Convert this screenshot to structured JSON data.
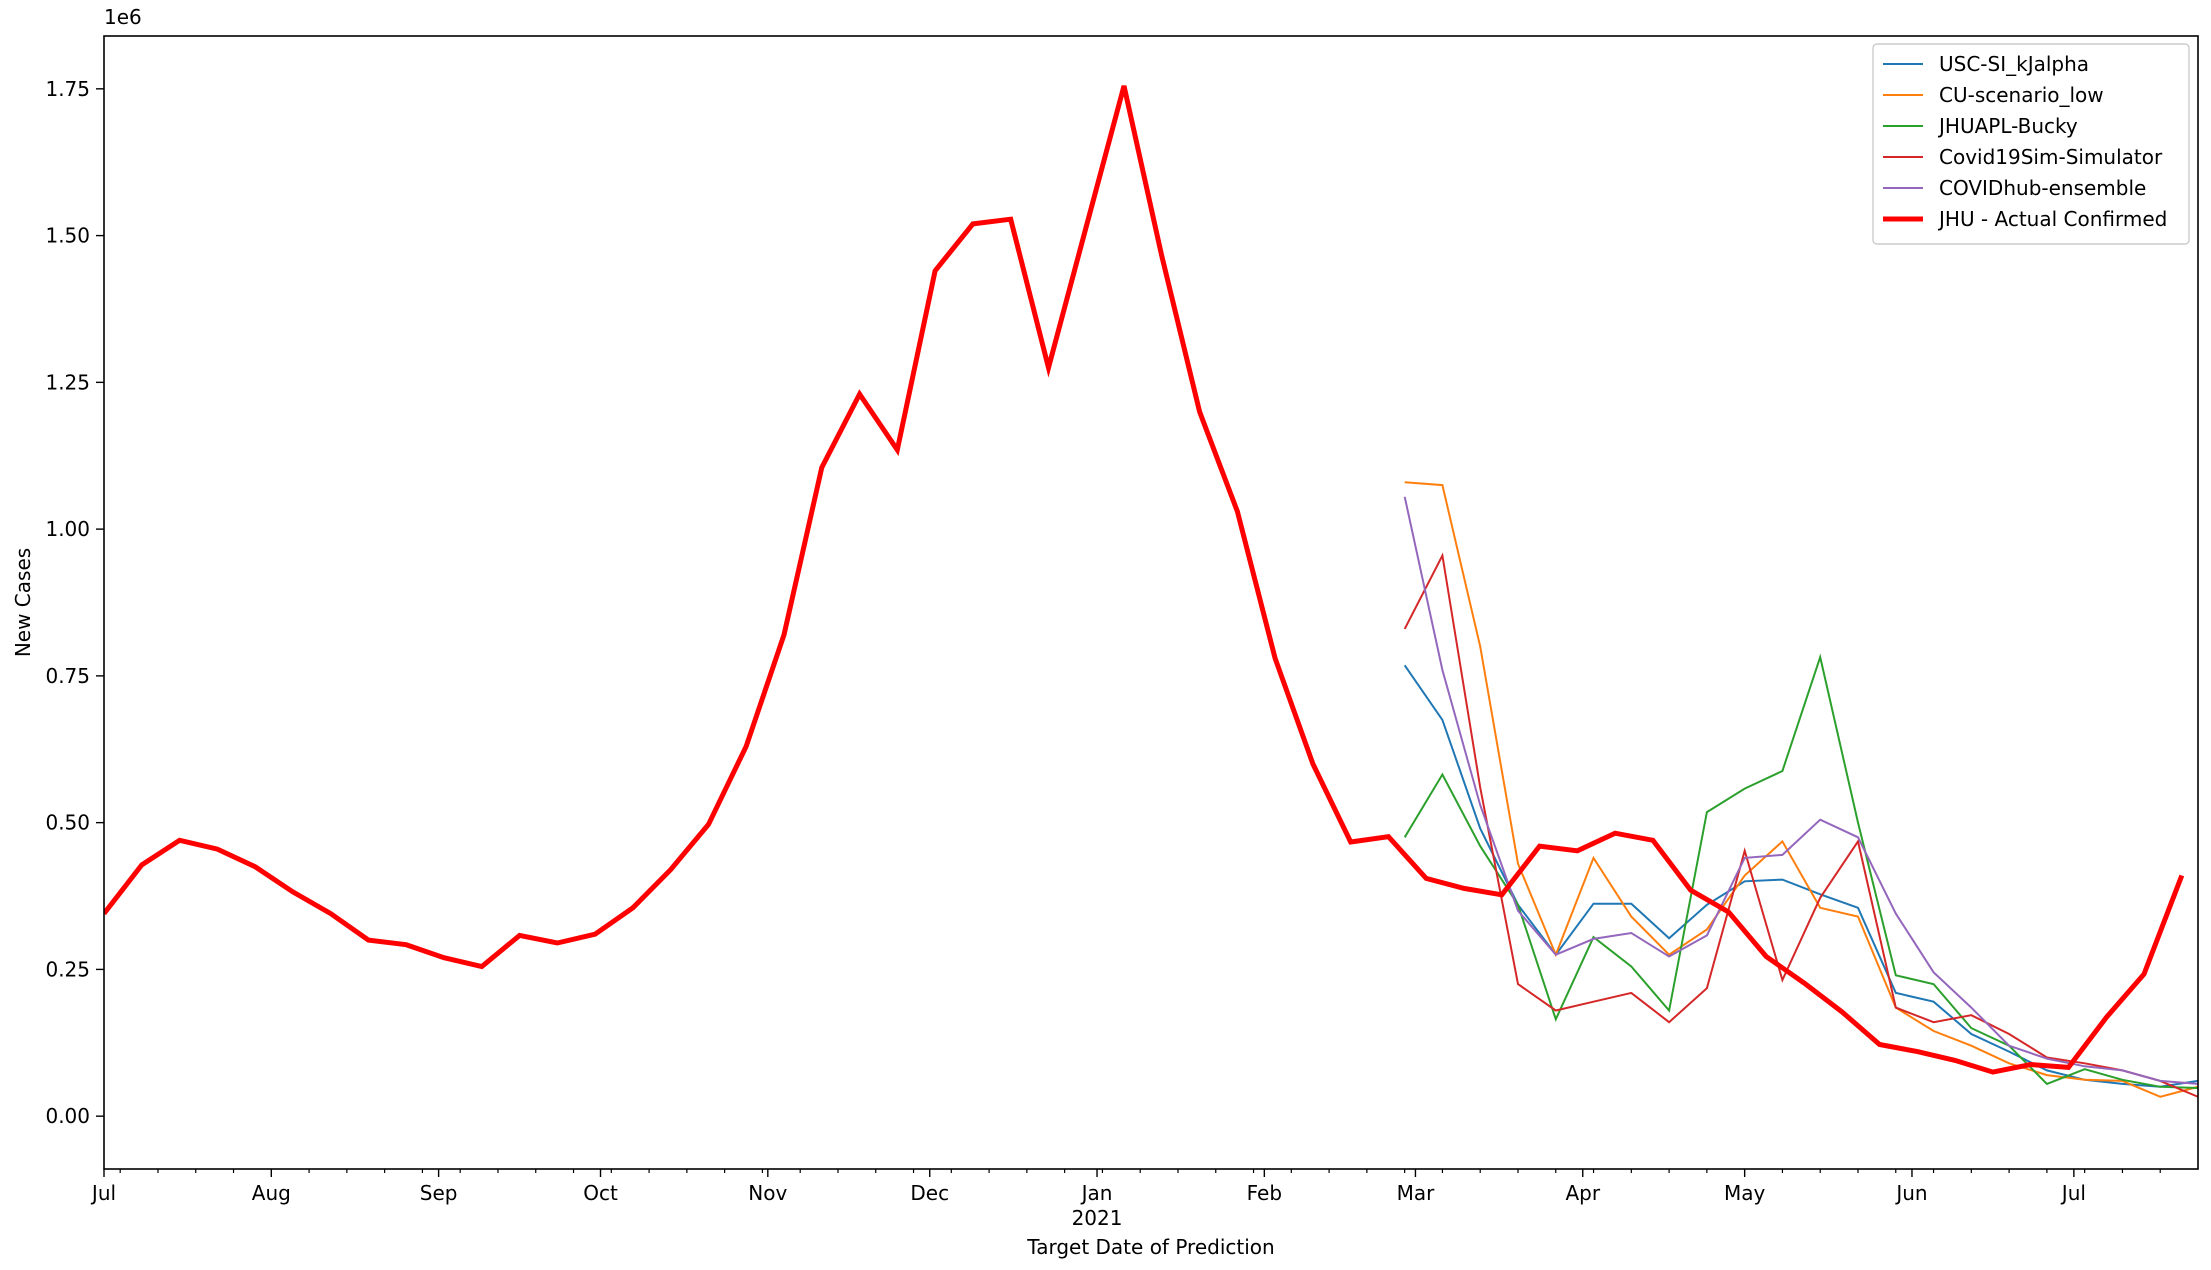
{
  "chart_data": {
    "type": "line",
    "title": "",
    "xlabel": "Target Date of Prediction",
    "ylabel": "New Cases",
    "y_scale_label": "1e6",
    "ylim": [
      -0.09,
      1.84
    ],
    "xlim": [
      "2020-07-01",
      "2021-07-24"
    ],
    "y_ticks": [
      {
        "value": 0.0,
        "label": "0.00"
      },
      {
        "value": 0.25,
        "label": "0.25"
      },
      {
        "value": 0.5,
        "label": "0.50"
      },
      {
        "value": 0.75,
        "label": "0.75"
      },
      {
        "value": 1.0,
        "label": "1.00"
      },
      {
        "value": 1.25,
        "label": "1.25"
      },
      {
        "value": 1.5,
        "label": "1.50"
      },
      {
        "value": 1.75,
        "label": "1.75"
      }
    ],
    "x_major_ticks": [
      {
        "date": "2020-07-01",
        "label": "Jul"
      },
      {
        "date": "2020-08-01",
        "label": "Aug"
      },
      {
        "date": "2020-09-01",
        "label": "Sep"
      },
      {
        "date": "2020-10-01",
        "label": "Oct"
      },
      {
        "date": "2020-11-01",
        "label": "Nov"
      },
      {
        "date": "2020-12-01",
        "label": "Dec"
      },
      {
        "date": "2021-01-01",
        "label": "Jan",
        "sublabel": "2021"
      },
      {
        "date": "2021-02-01",
        "label": "Feb"
      },
      {
        "date": "2021-03-01",
        "label": "Mar"
      },
      {
        "date": "2021-04-01",
        "label": "Apr"
      },
      {
        "date": "2021-05-01",
        "label": "May"
      },
      {
        "date": "2021-06-01",
        "label": "Jun"
      },
      {
        "date": "2021-07-01",
        "label": "Jul"
      }
    ],
    "x_minor_ticks": [
      "2020-07-04",
      "2020-07-11",
      "2020-07-18",
      "2020-07-25",
      "2020-08-08",
      "2020-08-15",
      "2020-08-22",
      "2020-08-29",
      "2020-09-05",
      "2020-09-12",
      "2020-09-19",
      "2020-09-26",
      "2020-10-03",
      "2020-10-10",
      "2020-10-17",
      "2020-10-24",
      "2020-10-31",
      "2020-11-07",
      "2020-11-14",
      "2020-11-21",
      "2020-11-28",
      "2020-12-05",
      "2020-12-12",
      "2020-12-19",
      "2020-12-26",
      "2021-01-02",
      "2021-01-09",
      "2021-01-16",
      "2021-01-23",
      "2021-01-30",
      "2021-02-06",
      "2021-02-13",
      "2021-02-20",
      "2021-02-27",
      "2021-03-06",
      "2021-03-13",
      "2021-03-20",
      "2021-03-27",
      "2021-04-03",
      "2021-04-10",
      "2021-04-17",
      "2021-04-24",
      "2021-05-08",
      "2021-05-15",
      "2021-05-22",
      "2021-05-29",
      "2021-06-05",
      "2021-06-12",
      "2021-06-19",
      "2021-06-26",
      "2021-07-03",
      "2021-07-10",
      "2021-07-17"
    ],
    "legend_position": "top-right",
    "grid": false,
    "series": [
      {
        "name": "USC-SI_kJalpha",
        "color": "#1f77b4",
        "line_width": 2,
        "points": [
          [
            "2021-02-27",
            0.768
          ],
          [
            "2021-03-06",
            0.675
          ],
          [
            "2021-03-13",
            0.49
          ],
          [
            "2021-03-20",
            0.36
          ],
          [
            "2021-03-27",
            0.275
          ],
          [
            "2021-04-03",
            0.362
          ],
          [
            "2021-04-10",
            0.362
          ],
          [
            "2021-04-17",
            0.303
          ],
          [
            "2021-04-24",
            0.36
          ],
          [
            "2021-05-01",
            0.4
          ],
          [
            "2021-05-08",
            0.403
          ],
          [
            "2021-05-15",
            0.378
          ],
          [
            "2021-05-22",
            0.355
          ],
          [
            "2021-05-29",
            0.21
          ],
          [
            "2021-06-05",
            0.195
          ],
          [
            "2021-06-12",
            0.14
          ],
          [
            "2021-06-19",
            0.11
          ],
          [
            "2021-06-26",
            0.078
          ],
          [
            "2021-07-03",
            0.062
          ],
          [
            "2021-07-10",
            0.055
          ],
          [
            "2021-07-17",
            0.05
          ],
          [
            "2021-07-24",
            0.06
          ],
          [
            "2021-07-31",
            0.073
          ]
        ]
      },
      {
        "name": "CU-scenario_low",
        "color": "#ff7f0e",
        "line_width": 2,
        "points": [
          [
            "2021-02-27",
            1.08
          ],
          [
            "2021-03-06",
            1.075
          ],
          [
            "2021-03-13",
            0.8
          ],
          [
            "2021-03-20",
            0.43
          ],
          [
            "2021-03-27",
            0.275
          ],
          [
            "2021-04-03",
            0.44
          ],
          [
            "2021-04-10",
            0.34
          ],
          [
            "2021-04-17",
            0.275
          ],
          [
            "2021-04-24",
            0.318
          ],
          [
            "2021-05-01",
            0.41
          ],
          [
            "2021-05-08",
            0.468
          ],
          [
            "2021-05-15",
            0.355
          ],
          [
            "2021-05-22",
            0.34
          ],
          [
            "2021-05-29",
            0.185
          ],
          [
            "2021-06-05",
            0.145
          ],
          [
            "2021-06-12",
            0.12
          ],
          [
            "2021-06-19",
            0.09
          ],
          [
            "2021-06-26",
            0.07
          ],
          [
            "2021-07-03",
            0.062
          ],
          [
            "2021-07-10",
            0.06
          ],
          [
            "2021-07-17",
            0.033
          ],
          [
            "2021-07-24",
            0.05
          ],
          [
            "2021-07-31",
            0.05
          ]
        ]
      },
      {
        "name": "JHUAPL-Bucky",
        "color": "#2ca02c",
        "line_width": 2,
        "points": [
          [
            "2021-02-27",
            0.475
          ],
          [
            "2021-03-06",
            0.582
          ],
          [
            "2021-03-13",
            0.46
          ],
          [
            "2021-03-20",
            0.36
          ],
          [
            "2021-03-27",
            0.165
          ],
          [
            "2021-04-03",
            0.305
          ],
          [
            "2021-04-10",
            0.255
          ],
          [
            "2021-04-17",
            0.18
          ],
          [
            "2021-04-24",
            0.518
          ],
          [
            "2021-05-01",
            0.558
          ],
          [
            "2021-05-08",
            0.588
          ],
          [
            "2021-05-15",
            0.782
          ],
          [
            "2021-05-22",
            0.5
          ],
          [
            "2021-05-29",
            0.24
          ],
          [
            "2021-06-05",
            0.225
          ],
          [
            "2021-06-12",
            0.15
          ],
          [
            "2021-06-19",
            0.12
          ],
          [
            "2021-06-26",
            0.055
          ],
          [
            "2021-07-03",
            0.08
          ],
          [
            "2021-07-10",
            0.062
          ],
          [
            "2021-07-17",
            0.05
          ],
          [
            "2021-07-24",
            0.048
          ],
          [
            "2021-07-31",
            0.045
          ]
        ]
      },
      {
        "name": "Covid19Sim-Simulator",
        "color": "#d62728",
        "line_width": 2,
        "points": [
          [
            "2021-02-27",
            0.83
          ],
          [
            "2021-03-06",
            0.955
          ],
          [
            "2021-03-13",
            0.56
          ],
          [
            "2021-03-20",
            0.225
          ],
          [
            "2021-03-27",
            0.18
          ],
          [
            "2021-04-03",
            0.195
          ],
          [
            "2021-04-10",
            0.21
          ],
          [
            "2021-04-17",
            0.16
          ],
          [
            "2021-04-24",
            0.218
          ],
          [
            "2021-05-01",
            0.452
          ],
          [
            "2021-05-08",
            0.232
          ],
          [
            "2021-05-15",
            0.372
          ],
          [
            "2021-05-22",
            0.468
          ],
          [
            "2021-05-29",
            0.185
          ],
          [
            "2021-06-05",
            0.16
          ],
          [
            "2021-06-12",
            0.172
          ],
          [
            "2021-06-19",
            0.14
          ],
          [
            "2021-06-26",
            0.1
          ],
          [
            "2021-07-03",
            0.09
          ],
          [
            "2021-07-10",
            0.078
          ],
          [
            "2021-07-17",
            0.06
          ],
          [
            "2021-07-24",
            0.033
          ],
          [
            "2021-07-31",
            0.028
          ]
        ]
      },
      {
        "name": "COVIDhub-ensemble",
        "color": "#9467bd",
        "line_width": 2,
        "points": [
          [
            "2021-02-27",
            1.055
          ],
          [
            "2021-03-06",
            0.76
          ],
          [
            "2021-03-13",
            0.53
          ],
          [
            "2021-03-20",
            0.35
          ],
          [
            "2021-03-27",
            0.275
          ],
          [
            "2021-04-03",
            0.302
          ],
          [
            "2021-04-10",
            0.312
          ],
          [
            "2021-04-17",
            0.272
          ],
          [
            "2021-04-24",
            0.308
          ],
          [
            "2021-05-01",
            0.44
          ],
          [
            "2021-05-08",
            0.445
          ],
          [
            "2021-05-15",
            0.505
          ],
          [
            "2021-05-22",
            0.475
          ],
          [
            "2021-05-29",
            0.345
          ],
          [
            "2021-06-05",
            0.245
          ],
          [
            "2021-06-12",
            0.185
          ],
          [
            "2021-06-19",
            0.12
          ],
          [
            "2021-06-26",
            0.098
          ],
          [
            "2021-07-03",
            0.085
          ],
          [
            "2021-07-10",
            0.078
          ],
          [
            "2021-07-17",
            0.06
          ],
          [
            "2021-07-24",
            0.055
          ],
          [
            "2021-07-31",
            0.058
          ]
        ]
      },
      {
        "name": "JHU - Actual Confirmed",
        "color": "#ff0000",
        "line_width": 5,
        "points": [
          [
            "2020-07-01",
            0.345
          ],
          [
            "2020-07-08",
            0.428
          ],
          [
            "2020-07-15",
            0.47
          ],
          [
            "2020-07-22",
            0.455
          ],
          [
            "2020-07-29",
            0.425
          ],
          [
            "2020-08-05",
            0.382
          ],
          [
            "2020-08-12",
            0.345
          ],
          [
            "2020-08-19",
            0.3
          ],
          [
            "2020-08-26",
            0.292
          ],
          [
            "2020-09-02",
            0.27
          ],
          [
            "2020-09-09",
            0.255
          ],
          [
            "2020-09-16",
            0.308
          ],
          [
            "2020-09-23",
            0.295
          ],
          [
            "2020-09-30",
            0.31
          ],
          [
            "2020-10-07",
            0.355
          ],
          [
            "2020-10-14",
            0.42
          ],
          [
            "2020-10-21",
            0.497
          ],
          [
            "2020-10-28",
            0.63
          ],
          [
            "2020-11-04",
            0.82
          ],
          [
            "2020-11-11",
            1.105
          ],
          [
            "2020-11-18",
            1.23
          ],
          [
            "2020-11-25",
            1.135
          ],
          [
            "2020-12-02",
            1.44
          ],
          [
            "2020-12-09",
            1.52
          ],
          [
            "2020-12-16",
            1.528
          ],
          [
            "2020-12-23",
            1.275
          ],
          [
            "2020-12-30",
            1.515
          ],
          [
            "2021-01-06",
            1.755
          ],
          [
            "2021-01-13",
            1.465
          ],
          [
            "2021-01-20",
            1.2
          ],
          [
            "2021-01-27",
            1.03
          ],
          [
            "2021-02-03",
            0.78
          ],
          [
            "2021-02-10",
            0.6
          ],
          [
            "2021-02-17",
            0.467
          ],
          [
            "2021-02-24",
            0.476
          ],
          [
            "2021-03-03",
            0.405
          ],
          [
            "2021-03-10",
            0.388
          ],
          [
            "2021-03-17",
            0.377
          ],
          [
            "2021-03-24",
            0.46
          ],
          [
            "2021-03-31",
            0.452
          ],
          [
            "2021-04-07",
            0.482
          ],
          [
            "2021-04-14",
            0.47
          ],
          [
            "2021-04-21",
            0.385
          ],
          [
            "2021-04-28",
            0.348
          ],
          [
            "2021-05-05",
            0.272
          ],
          [
            "2021-05-12",
            0.227
          ],
          [
            "2021-05-19",
            0.178
          ],
          [
            "2021-05-26",
            0.122
          ],
          [
            "2021-06-02",
            0.11
          ],
          [
            "2021-06-09",
            0.095
          ],
          [
            "2021-06-16",
            0.075
          ],
          [
            "2021-06-23",
            0.088
          ],
          [
            "2021-06-30",
            0.083
          ],
          [
            "2021-07-07",
            0.168
          ],
          [
            "2021-07-14",
            0.242
          ],
          [
            "2021-07-21",
            0.41
          ]
        ]
      }
    ]
  }
}
